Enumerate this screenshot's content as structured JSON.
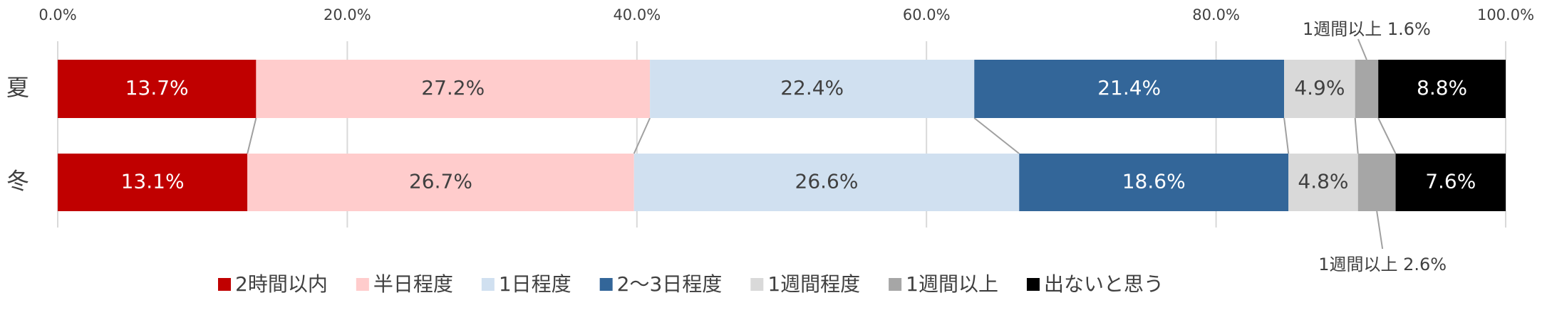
{
  "chart_data": {
    "type": "stacked-bar-horizontal",
    "categories": [
      "夏",
      "冬"
    ],
    "series": [
      {
        "name": "2時間以内",
        "color": "#c00000",
        "values": [
          13.7,
          13.1
        ],
        "value_labels": [
          "13.7%",
          "13.1%"
        ]
      },
      {
        "name": "半日程度",
        "color": "#ffcccc",
        "values": [
          27.2,
          26.7
        ],
        "value_labels": [
          "27.2%",
          "26.7%"
        ]
      },
      {
        "name": "1日程度",
        "color": "#d0e0f0",
        "values": [
          22.4,
          26.6
        ],
        "value_labels": [
          "22.4%",
          "26.6%"
        ]
      },
      {
        "name": "2〜3日程度",
        "color": "#336699",
        "values": [
          21.4,
          18.6
        ],
        "value_labels": [
          "21.4%",
          "18.6%"
        ]
      },
      {
        "name": "1週間程度",
        "color": "#d9d9d9",
        "values": [
          4.9,
          4.8
        ],
        "value_labels": [
          "4.9%",
          "4.8%"
        ]
      },
      {
        "name": "1週間以上",
        "color": "#a6a6a6",
        "values": [
          1.6,
          2.6
        ],
        "value_labels": [
          "1週間以上 1.6%",
          "1週間以上 2.6%"
        ]
      },
      {
        "name": "出ないと思う",
        "color": "#000000",
        "values": [
          8.8,
          7.6
        ],
        "value_labels": [
          "8.8%",
          "7.6%"
        ]
      }
    ],
    "xlim": [
      0,
      100
    ],
    "xticks": [
      {
        "value": 0,
        "label": "0.0%"
      },
      {
        "value": 20,
        "label": "20.0%"
      },
      {
        "value": 40,
        "label": "40.0%"
      },
      {
        "value": 60,
        "label": "60.0%"
      },
      {
        "value": 80,
        "label": "80.0%"
      },
      {
        "value": 100,
        "label": "100.0%"
      }
    ],
    "grid": true,
    "legend": "bottom"
  }
}
